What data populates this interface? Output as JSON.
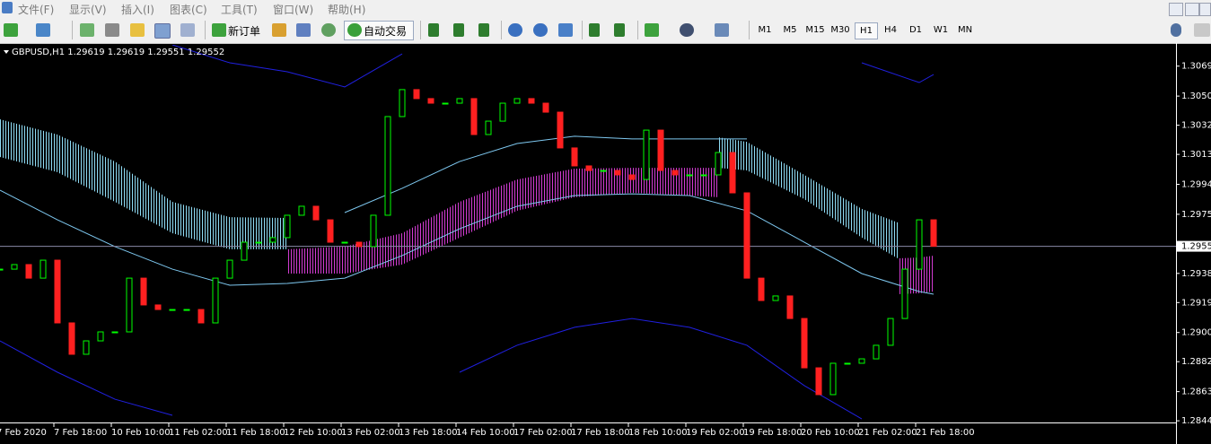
{
  "menu": [
    "文件(F)",
    "显示(V)",
    "插入(I)",
    "图表(C)",
    "工具(T)",
    "窗口(W)",
    "帮助(H)"
  ],
  "toolbar": {
    "new_order": "新订单",
    "auto_trading": "自动交易",
    "timeframes": [
      "M1",
      "M5",
      "M15",
      "M30",
      "H1",
      "H4",
      "D1",
      "W1",
      "MN"
    ]
  },
  "chart_data": {
    "type": "candlestick",
    "header": "GBPUSD,H1  1.29619 1.29619 1.29551 1.29552",
    "x": [
      0,
      4,
      8,
      12,
      16,
      20,
      24,
      28,
      32,
      36,
      40,
      44,
      48,
      52,
      56,
      60,
      64,
      68,
      72,
      76,
      80,
      84,
      88,
      92,
      96,
      100,
      104,
      108,
      112,
      116,
      120,
      124,
      128,
      132,
      136,
      140,
      144,
      148,
      152,
      156,
      160,
      164,
      168,
      172,
      176,
      180,
      184,
      188,
      192,
      196,
      200,
      204,
      208,
      212,
      216,
      220,
      224,
      228,
      232,
      236,
      240,
      244,
      248,
      252,
      256,
      260
    ],
    "close": [
      1.29407,
      1.29436,
      1.2935,
      1.29464,
      1.29066,
      1.28867,
      1.28952,
      1.29009,
      1.29009,
      1.2935,
      1.2918,
      1.29151,
      1.29151,
      1.29151,
      1.29066,
      1.2935,
      1.29464,
      1.29578,
      1.29578,
      1.29607,
      1.29749,
      1.29806,
      1.2972,
      1.29578,
      1.29578,
      1.2955,
      1.29749,
      1.30375,
      1.30546,
      1.30489,
      1.3046,
      1.3046,
      1.30489,
      1.30261,
      1.30346,
      1.3046,
      1.30489,
      1.3046,
      1.30403,
      1.30176,
      1.30062,
      1.30033,
      1.30033,
      1.30005,
      1.29976,
      1.30289,
      1.30033,
      1.30005,
      1.30005,
      1.30005,
      1.30147,
      1.29891,
      1.2935,
      1.29208,
      1.29237,
      1.29094,
      1.28781,
      1.28611,
      1.2881,
      1.2881,
      1.28838,
      1.28924,
      1.29094,
      1.29407,
      1.2972,
      1.29552
    ],
    "up_color": "#00ff00",
    "down_color": "#ff2020",
    "line_x": [
      0,
      16,
      32,
      48,
      64,
      80,
      96,
      112,
      128,
      144,
      160,
      176,
      192,
      208,
      224,
      240,
      256,
      260
    ],
    "lines": [
      {
        "color": "#7ec8f0",
        "values": [
          1.29908,
          1.2972,
          1.2955,
          1.29407,
          1.29305,
          1.29316,
          1.2935,
          1.29493,
          1.29663,
          1.29806,
          1.29874,
          1.29885,
          1.29874,
          1.29777,
          1.29578,
          1.29379,
          1.29265,
          1.29248
        ]
      },
      {
        "color": "#7ec8f0",
        "values": [
          null,
          null,
          null,
          null,
          null,
          null,
          1.29766,
          1.2992,
          1.3009,
          1.30204,
          1.3025,
          1.30233,
          1.30233,
          1.30233,
          null,
          null,
          null,
          null
        ]
      },
      {
        "color": "#2020e0",
        "values": [
          null,
          null,
          null,
          1.3083,
          1.30716,
          1.30659,
          1.30563,
          1.30773,
          null,
          null,
          null,
          null,
          null,
          null,
          null,
          1.30716,
          1.30591,
          1.30642
        ]
      },
      {
        "color": "#2020e0",
        "values": [
          1.28952,
          1.28753,
          1.28582,
          1.2848,
          null,
          null,
          null,
          null,
          1.28753,
          1.28924,
          1.29038,
          1.29094,
          1.29038,
          1.28924,
          1.28668,
          1.28457,
          null,
          null
        ]
      }
    ],
    "regions": [
      {
        "color": "#8fdcf5",
        "x": [
          0,
          16,
          32,
          48,
          64,
          80
        ],
        "top": [
          1.30358,
          1.30261,
          1.3009,
          1.29834,
          1.29737,
          1.29732
        ],
        "bottom": [
          1.30119,
          1.30022,
          1.29834,
          1.29635,
          1.29533,
          1.29533
        ]
      },
      {
        "color": "#d23cd2",
        "x": [
          80,
          96,
          112,
          128,
          144,
          160,
          176,
          192,
          200
        ],
        "top": [
          1.29533,
          1.2955,
          1.29635,
          1.29834,
          1.29976,
          1.30045,
          1.3005,
          1.3005,
          1.3005
        ],
        "bottom": [
          1.29379,
          1.29379,
          1.29436,
          1.29607,
          1.29777,
          1.29863,
          1.29891,
          1.29874,
          1.29863
        ]
      },
      {
        "color": "#8fdcf5",
        "x": [
          200,
          208,
          224,
          240,
          250
        ],
        "top": [
          1.30244,
          1.30215,
          1.30005,
          1.29789,
          1.29703
        ],
        "bottom": [
          1.3005,
          1.30033,
          1.29851,
          1.29607,
          1.29476
        ]
      },
      {
        "color": "#d23cd2",
        "x": [
          250,
          256,
          260
        ],
        "top": [
          1.29476,
          1.29481,
          1.29493
        ],
        "bottom": [
          1.29248,
          1.29254,
          1.29265
        ]
      }
    ],
    "last_price": 1.29552,
    "xlim": [
      0,
      327.5
    ],
    "ylim": [
      1.2844,
      1.3083
    ],
    "yticks": [
      1.30695,
      1.30505,
      {
        "value": 1.3032,
        "label": "1.30320"
      },
      1.30135,
      1.29945,
      1.29755,
      {
        "value": 1.2938,
        "label": "1.29380"
      },
      1.29195,
      1.29005,
      {
        "value": 1.2882,
        "label": "1.28820"
      },
      {
        "value": 1.2863,
        "label": "1.28630"
      },
      1.28445
    ],
    "xticks": [
      {
        "value": -1,
        "label": "7 Feb 2020"
      },
      {
        "value": 15,
        "label": "7 Feb 18:00"
      },
      {
        "value": 31,
        "label": "10 Feb 10:00"
      },
      {
        "value": 47,
        "label": "11 Feb 02:00"
      },
      {
        "value": 63,
        "label": "11 Feb 18:00"
      },
      {
        "value": 79,
        "label": "12 Feb 10:00"
      },
      {
        "value": 95,
        "label": "13 Feb 02:00"
      },
      {
        "value": 111,
        "label": "13 Feb 18:00"
      },
      {
        "value": 127,
        "label": "14 Feb 10:00"
      },
      {
        "value": 143,
        "label": "17 Feb 02:00"
      },
      {
        "value": 159,
        "label": "17 Feb 18:00"
      },
      {
        "value": 175,
        "label": "18 Feb 10:00"
      },
      {
        "value": 191,
        "label": "19 Feb 02:00"
      },
      {
        "value": 207,
        "label": "19 Feb 18:00"
      },
      {
        "value": 223,
        "label": "20 Feb 10:00"
      },
      {
        "value": 239,
        "label": "21 Feb 02:00"
      },
      {
        "value": 255,
        "label": "21 Feb 18:00"
      }
    ]
  }
}
